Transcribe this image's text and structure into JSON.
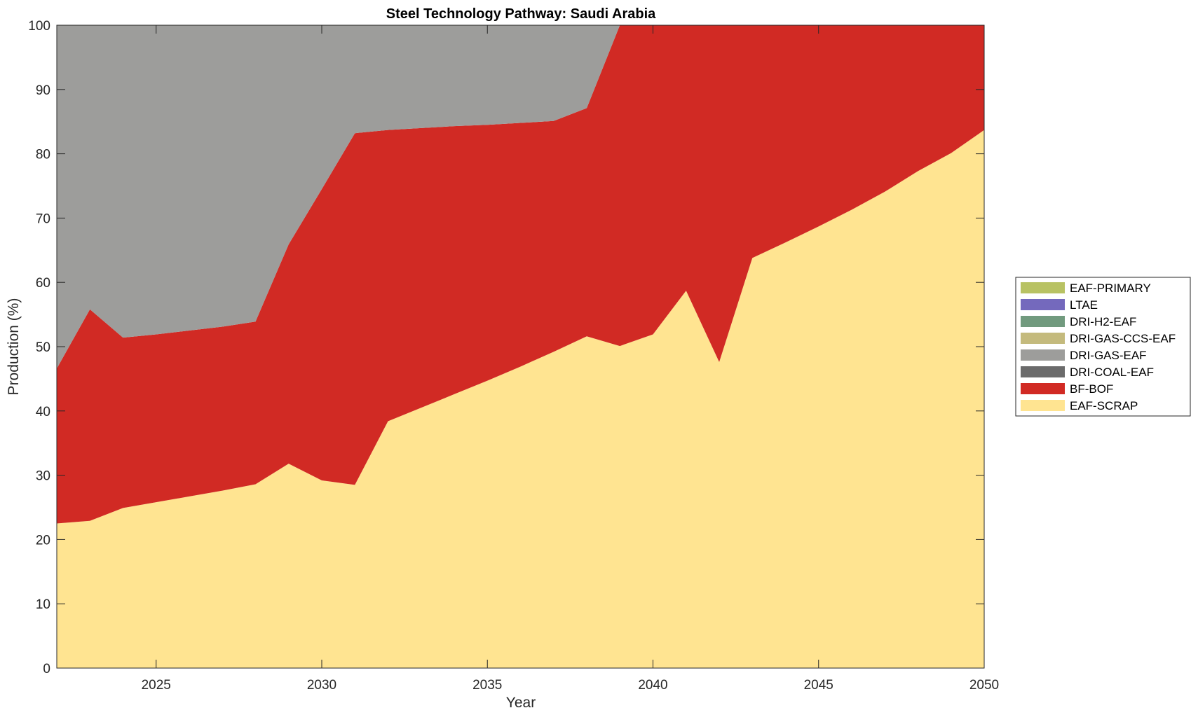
{
  "chart_data": {
    "type": "area",
    "stacked": true,
    "title": "Steel Technology Pathway: Saudi Arabia",
    "xlabel": "Year",
    "ylabel": "Production (%)",
    "xlim": [
      2022,
      2050
    ],
    "ylim": [
      0,
      100
    ],
    "xticks": [
      "2025",
      "2030",
      "2035",
      "2040",
      "2045",
      "2050"
    ],
    "yticks": [
      "0",
      "10",
      "20",
      "30",
      "40",
      "50",
      "60",
      "70",
      "80",
      "90",
      "100"
    ],
    "grid": false,
    "legend_position": "right",
    "x": [
      2022,
      2023,
      2024,
      2025,
      2026,
      2027,
      2028,
      2029,
      2030,
      2031,
      2032,
      2033,
      2034,
      2035,
      2036,
      2037,
      2038,
      2039,
      2040,
      2041,
      2042,
      2043,
      2044,
      2045,
      2046,
      2047,
      2048,
      2049,
      2050
    ],
    "series": [
      {
        "name": "EAF-SCRAP",
        "color": "#ffe491",
        "values": [
          22.5,
          22.9,
          24.9,
          25.8,
          26.7,
          27.6,
          28.6,
          31.8,
          29.2,
          28.5,
          38.4,
          40.5,
          42.6,
          44.7,
          46.9,
          49.2,
          51.6,
          50.1,
          51.9,
          58.7,
          47.6,
          63.8,
          66.2,
          68.7,
          71.3,
          74.1,
          77.3,
          80.1,
          83.7
        ]
      },
      {
        "name": "BF-BOF",
        "color": "#d12a24",
        "values": [
          24.1,
          32.9,
          26.5,
          26.1,
          25.8,
          25.5,
          25.3,
          34.1,
          45.3,
          54.7,
          45.3,
          43.5,
          41.7,
          39.8,
          37.9,
          35.9,
          35.5,
          49.9,
          48.1,
          41.3,
          52.4,
          36.2,
          33.8,
          31.3,
          28.7,
          25.9,
          22.7,
          19.9,
          16.3
        ]
      },
      {
        "name": "DRI-COAL-EAF",
        "color": "#6b6b6b",
        "values": [
          0,
          0,
          0,
          0,
          0,
          0,
          0,
          0,
          0,
          0,
          0,
          0,
          0,
          0,
          0,
          0,
          0,
          0,
          0,
          0,
          0,
          0,
          0,
          0,
          0,
          0,
          0,
          0,
          0
        ]
      },
      {
        "name": "DRI-GAS-EAF",
        "color": "#9d9d9b",
        "values": [
          53.4,
          44.2,
          48.6,
          48.1,
          47.5,
          46.9,
          46.1,
          34.1,
          25.5,
          16.8,
          16.3,
          16.0,
          15.7,
          15.5,
          15.2,
          14.9,
          12.9,
          0,
          0,
          0,
          0,
          0,
          0,
          0,
          0,
          0,
          0,
          0,
          0
        ]
      },
      {
        "name": "DRI-GAS-CCS-EAF",
        "color": "#c4ba7d",
        "values": [
          0,
          0,
          0,
          0,
          0,
          0,
          0,
          0,
          0,
          0,
          0,
          0,
          0,
          0,
          0,
          0,
          0,
          0,
          0,
          0,
          0,
          0,
          0,
          0,
          0,
          0,
          0,
          0,
          0
        ]
      },
      {
        "name": "DRI-H2-EAF",
        "color": "#719a7e",
        "values": [
          0,
          0,
          0,
          0,
          0,
          0,
          0,
          0,
          0,
          0,
          0,
          0,
          0,
          0,
          0,
          0,
          0,
          0,
          0,
          0,
          0,
          0,
          0,
          0,
          0,
          0,
          0,
          0,
          0
        ]
      },
      {
        "name": "LTAE",
        "color": "#7469bd",
        "values": [
          0,
          0,
          0,
          0,
          0,
          0,
          0,
          0,
          0,
          0,
          0,
          0,
          0,
          0,
          0,
          0,
          0,
          0,
          0,
          0,
          0,
          0,
          0,
          0,
          0,
          0,
          0,
          0,
          0
        ]
      },
      {
        "name": "EAF-PRIMARY",
        "color": "#b8c263",
        "values": [
          0,
          0,
          0,
          0,
          0,
          0,
          0,
          0,
          0,
          0,
          0,
          0,
          0,
          0,
          0,
          0,
          0,
          0,
          0,
          0,
          0,
          0,
          0,
          0,
          0,
          0,
          0,
          0,
          0
        ]
      }
    ]
  }
}
